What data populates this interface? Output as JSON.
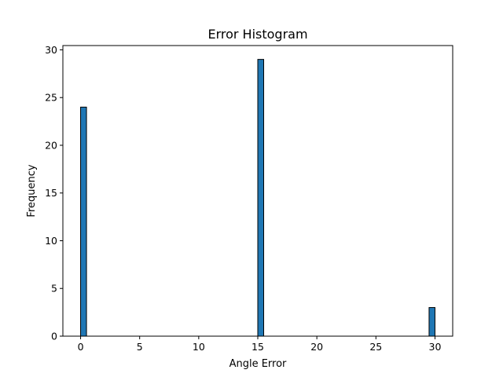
{
  "chart_data": {
    "type": "bar",
    "title": "Error Histogram",
    "xlabel": "Angle Error",
    "ylabel": "Frequency",
    "xlim": [
      -1.5,
      31.5
    ],
    "ylim": [
      0,
      30.45
    ],
    "x_ticks": [
      0,
      5,
      10,
      15,
      20,
      25,
      30
    ],
    "y_ticks": [
      0,
      5,
      10,
      15,
      20,
      25,
      30
    ],
    "bin_width": 0.5,
    "bars": [
      {
        "x_start": 0,
        "x_end": 0.5,
        "value": 24
      },
      {
        "x_start": 15,
        "x_end": 15.5,
        "value": 29
      },
      {
        "x_start": 29.5,
        "x_end": 30,
        "value": 3
      }
    ],
    "bar_color": "#1f77b4",
    "bar_edge_color": "#000000",
    "grid": false
  }
}
